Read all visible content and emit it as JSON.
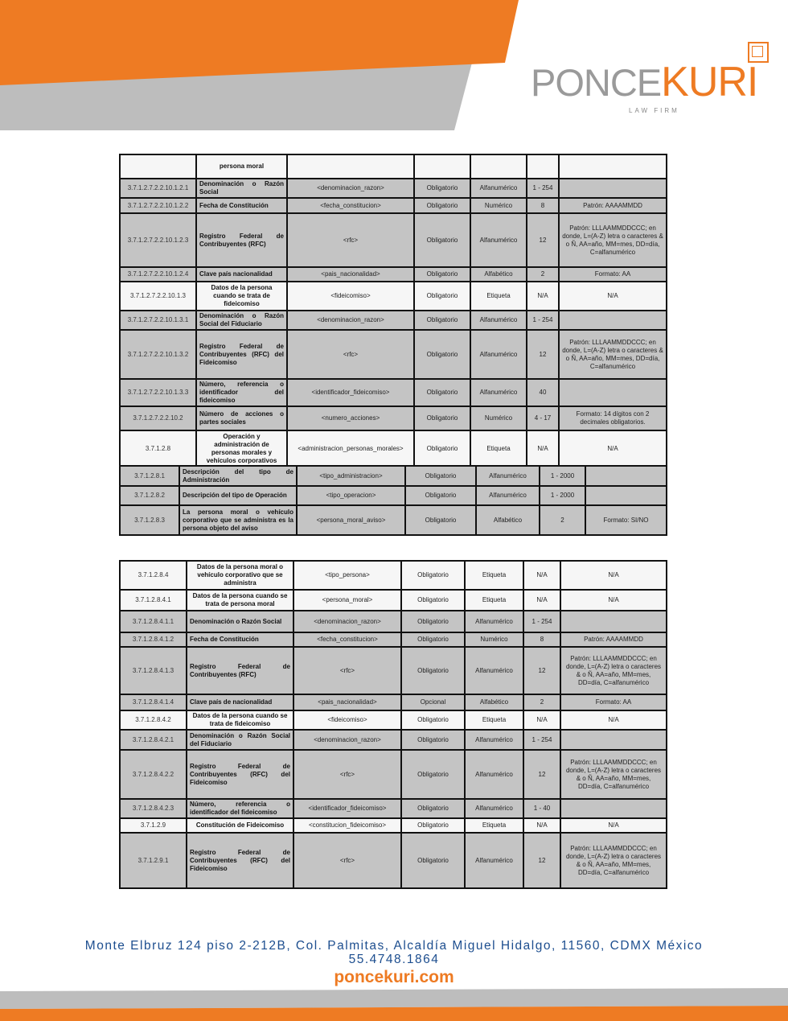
{
  "brand": {
    "name_part1": "PONCE",
    "name_part2": "KURI",
    "tagline": "LAW FIRM",
    "colors": {
      "orange": "#ee7b23",
      "gray": "#bdbdbd",
      "blue": "#1d4e8f"
    }
  },
  "table1": {
    "rows": [
      {
        "shade": "w",
        "code": "",
        "name": "persona moral",
        "tag": "",
        "req": "",
        "type": "",
        "len": "",
        "notes": ""
      },
      {
        "shade": "g",
        "code": "3.7.1.2.7.2.2.10.1.2.1",
        "name": "Denominación o Razón Social",
        "tag": "<denominacion_razon>",
        "req": "Obligatorio",
        "type": "Alfanumérico",
        "len": "1 - 254",
        "notes": ""
      },
      {
        "shade": "g",
        "code": "3.7.1.2.7.2.2.10.1.2.2",
        "name": "Fecha de Constitución",
        "tag": "<fecha_constitucion>",
        "req": "Obligatorio",
        "type": "Numérico",
        "len": "8",
        "notes": "Patrón: AAAAMMDD"
      },
      {
        "shade": "g",
        "code": "3.7.1.2.7.2.2.10.1.2.3",
        "name": "Registro Federal de Contribuyentes (RFC)",
        "tag": "<rfc>",
        "req": "Obligatorio",
        "type": "Alfanumérico",
        "len": "12",
        "notes": "Patrón: LLLAAMMDDCCC; en donde, L=(A-Z) letra o caracteres & o Ñ, AA=año, MM=mes, DD=día, C=alfanumérico"
      },
      {
        "shade": "g",
        "code": "3.7.1.2.7.2.2.10.1.2.4",
        "name": "Clave país nacionalidad",
        "tag": "<pais_nacionalidad>",
        "req": "Obligatorio",
        "type": "Alfabético",
        "len": "2",
        "notes": "Formato: AA"
      },
      {
        "shade": "w",
        "code": "3.7.1.2.7.2.2.10.1.3",
        "name": "Datos de la persona cuando se trata de fideicomiso",
        "tag": "<fideicomiso>",
        "req": "Obligatorio",
        "type": "Etiqueta",
        "len": "N/A",
        "notes": "N/A"
      },
      {
        "shade": "g",
        "code": "3.7.1.2.7.2.2.10.1.3.1",
        "name": "Denominación o Razón Social del Fiduciario",
        "tag": "<denominacion_razon>",
        "req": "Obligatorio",
        "type": "Alfanumérico",
        "len": "1 - 254",
        "notes": ""
      },
      {
        "shade": "g",
        "code": "3.7.1.2.7.2.2.10.1.3.2",
        "name": "Registro Federal de Contribuyentes (RFC) del Fideicomiso",
        "tag": "<rfc>",
        "req": "Obligatorio",
        "type": "Alfanumérico",
        "len": "12",
        "notes": "Patrón: LLLAAMMDDCCC; en donde, L=(A-Z) letra o caracteres & o Ñ, AA=año, MM=mes, DD=día, C=alfanumérico"
      },
      {
        "shade": "g",
        "code": "3.7.1.2.7.2.2.10.1.3.3",
        "name": "Número, referencia o identificador del fideicomiso",
        "tag": "<identificador_fideicomiso>",
        "req": "Obligatorio",
        "type": "Alfanumérico",
        "len": "40",
        "notes": ""
      },
      {
        "shade": "g",
        "code": "3.7.1.2.7.2.2.10.2",
        "name": "Número de acciones o partes sociales",
        "tag": "<numero_acciones>",
        "req": "Obligatorio",
        "type": "Numérico",
        "len": "4 - 17",
        "notes": "Formato: 14 dígitos con 2 decimales obligatorios."
      },
      {
        "shade": "w",
        "code": "3.7.1.2.8",
        "name": "Operación y administración de personas morales y vehículos corporativos",
        "tag": "<administracion_personas_morales>",
        "req": "Obligatorio",
        "type": "Etiqueta",
        "len": "N/A",
        "notes": "N/A"
      }
    ]
  },
  "table1b": {
    "rows": [
      {
        "shade": "g",
        "code": "3.7.1.2.8.1",
        "name": "Descripción del tipo de Administración",
        "tag": "<tipo_administracion>",
        "req": "Obligatorio",
        "type": "Alfanumérico",
        "len": "1 - 2000",
        "notes": ""
      },
      {
        "shade": "g",
        "code": "3.7.1.2.8.2",
        "name": "Descripción del tipo de Operación",
        "tag": "<tipo_operacion>",
        "req": "Obligatorio",
        "type": "Alfanumérico",
        "len": "1 - 2000",
        "notes": ""
      },
      {
        "shade": "g",
        "code": "3.7.1.2.8.3",
        "name": "La persona moral o vehículo corporativo que se administra es la persona objeto del aviso",
        "tag": "<persona_moral_aviso>",
        "req": "Obligatorio",
        "type": "Alfabético",
        "len": "2",
        "notes": "Formato: SI/NO"
      }
    ]
  },
  "table2": {
    "rows": [
      {
        "shade": "w",
        "code": "3.7.1.2.8.4",
        "name": "Datos de la persona moral o vehículo corporativo que se administra",
        "tag": "<tipo_persona>",
        "req": "Obligatorio",
        "type": "Etiqueta",
        "len": "N/A",
        "notes": "N/A"
      },
      {
        "shade": "w",
        "code": "3.7.1.2.8.4.1",
        "name": "Datos de la persona cuando se trata de persona moral",
        "tag": "<persona_moral>",
        "req": "Obligatorio",
        "type": "Etiqueta",
        "len": "N/A",
        "notes": "N/A"
      },
      {
        "shade": "g",
        "code": "3.7.1.2.8.4.1.1",
        "name": "Denominación o Razón Social",
        "tag": "<denominacion_razon>",
        "req": "Obligatorio",
        "type": "Alfanumérico",
        "len": "1 - 254",
        "notes": ""
      },
      {
        "shade": "g",
        "code": "3.7.1.2.8.4.1.2",
        "name": "Fecha de Constitución",
        "tag": "<fecha_constitucion>",
        "req": "Obligatorio",
        "type": "Numérico",
        "len": "8",
        "notes": "Patrón: AAAAMMDD"
      },
      {
        "shade": "g",
        "code": "3.7.1.2.8.4.1.3",
        "name": "Registro Federal de Contribuyentes (RFC)",
        "tag": "<rfc>",
        "req": "Obligatorio",
        "type": "Alfanumérico",
        "len": "12",
        "notes": "Patrón: LLLAAMMDDCCC; en donde, L=(A-Z) letra o caracteres & o Ñ, AA=año, MM=mes, DD=día, C=alfanumérico"
      },
      {
        "shade": "g",
        "code": "3.7.1.2.8.4.1.4",
        "name": "Clave país de nacionalidad",
        "tag": "<pais_nacionalidad>",
        "req": "Opcional",
        "type": "Alfabético",
        "len": "2",
        "notes": "Formato: AA"
      },
      {
        "shade": "w",
        "code": "3.7.1.2.8.4.2",
        "name": "Datos de la persona cuando se trata de fideicomiso",
        "tag": "<fideicomiso>",
        "req": "Obligatorio",
        "type": "Etiqueta",
        "len": "N/A",
        "notes": "N/A"
      },
      {
        "shade": "g",
        "code": "3.7.1.2.8.4.2.1",
        "name": "Denominación o Razón Social del Fiduciario",
        "tag": "<denominacion_razon>",
        "req": "Obligatorio",
        "type": "Alfanumérico",
        "len": "1 - 254",
        "notes": ""
      },
      {
        "shade": "g",
        "code": "3.7.1.2.8.4.2.2",
        "name": "Registro Federal de Contribuyentes (RFC) del Fideicomiso",
        "tag": "<rfc>",
        "req": "Obligatorio",
        "type": "Alfanumérico",
        "len": "12",
        "notes": "Patrón: LLLAAMMDDCCC; en donde, L=(A-Z) letra o caracteres & o Ñ, AA=año, MM=mes, DD=día, C=alfanumérico"
      },
      {
        "shade": "g",
        "code": "3.7.1.2.8.4.2.3",
        "name": "Número, referencia o identificador del fideicomiso",
        "tag": "<identificador_fideicomiso>",
        "req": "Obligatorio",
        "type": "Alfanumérico",
        "len": "1 - 40",
        "notes": ""
      },
      {
        "shade": "w",
        "code": "3.7.1.2.9",
        "name": "Constitución de Fideicomiso",
        "tag": "<constitucion_fideicomiso>",
        "req": "Obligatorio",
        "type": "Etiqueta",
        "len": "N/A",
        "notes": "N/A"
      },
      {
        "shade": "g",
        "code": "3.7.1.2.9.1",
        "name": "Registro Federal de Contribuyentes (RFC) del Fideicomiso",
        "tag": "<rfc>",
        "req": "Obligatorio",
        "type": "Alfanumérico",
        "len": "12",
        "notes": "Patrón: LLLAAMMDDCCC; en donde, L=(A-Z) letra o caracteres & o Ñ, AA=año, MM=mes, DD=día, C=alfanumérico"
      }
    ]
  },
  "footer": {
    "address": "Monte Elbruz 124 piso 2-212B, Col. Palmitas, Alcaldía Miguel Hidalgo, 11560, CDMX México",
    "phone": "55.4748.1864",
    "website": "poncekuri.com"
  }
}
